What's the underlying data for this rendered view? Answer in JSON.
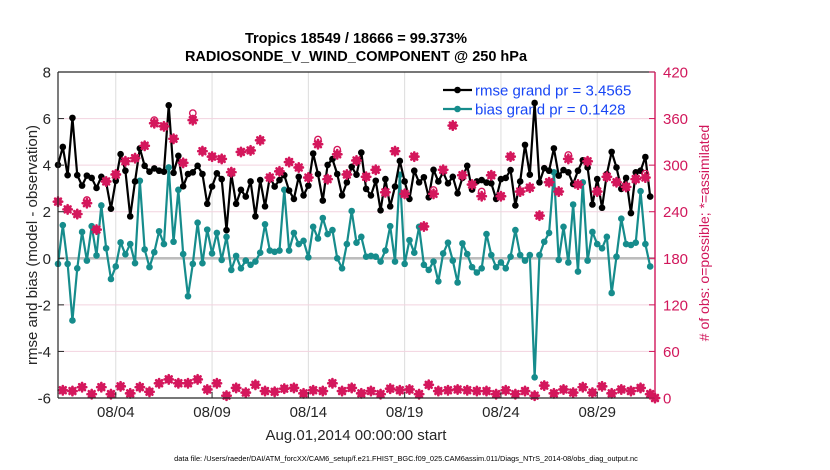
{
  "figure": {
    "footer": "data file: /Users/raeder/DAI/ATM_forcXX/CAM6_setup/f.e21.FHIST_BGC.f09_025.CAM6assim.011/Diags_NTrS_2014-08/obs_diag_output.nc"
  },
  "colors": {
    "rmse": "#000000",
    "bias": "#168c8c",
    "obs_count": "#d4175c",
    "right_axis": "#d1175b",
    "legend_text": "#1846f5",
    "zero_line": "#bdbdbd"
  },
  "chart_data": {
    "type": "line",
    "title": "Tropics 18549 / 18666 = 99.373%",
    "subtitle": "RADIOSONDE_V_WIND_COMPONENT @ 250 hPa",
    "xlabel": "Aug.01,2014 00:00:00 start",
    "ylabel": "rmse and bias (model - observation)",
    "y2label": "# of obs: o=possible; *=assimilated",
    "x_units": "days since Aug.01,2014 00:00:00",
    "xlim": [
      0,
      31
    ],
    "ylim": [
      -6,
      8
    ],
    "y2lim": [
      0,
      420
    ],
    "grid": true,
    "legend_position": "top-right",
    "reference_line": 0,
    "x_ticks": [
      {
        "day": 3,
        "label": "08/04"
      },
      {
        "day": 8,
        "label": "08/09"
      },
      {
        "day": 13,
        "label": "08/14"
      },
      {
        "day": 18,
        "label": "08/19"
      },
      {
        "day": 23,
        "label": "08/24"
      },
      {
        "day": 28,
        "label": "08/29"
      }
    ],
    "y_ticks": [
      8,
      6,
      4,
      2,
      0,
      -2,
      -4,
      -6
    ],
    "y2_ticks": [
      0,
      60,
      120,
      180,
      240,
      300,
      360,
      420
    ],
    "x_days": [
      0,
      0.25,
      0.5,
      0.75,
      1,
      1.25,
      1.5,
      1.75,
      2,
      2.25,
      2.5,
      2.75,
      3,
      3.25,
      3.5,
      3.75,
      4,
      4.25,
      4.5,
      4.75,
      5,
      5.25,
      5.5,
      5.75,
      6,
      6.25,
      6.5,
      6.75,
      7,
      7.25,
      7.5,
      7.75,
      8,
      8.25,
      8.5,
      8.75,
      9,
      9.25,
      9.5,
      9.75,
      10,
      10.25,
      10.5,
      10.75,
      11,
      11.25,
      11.5,
      11.75,
      12,
      12.25,
      12.5,
      12.75,
      13,
      13.25,
      13.5,
      13.75,
      14,
      14.25,
      14.5,
      14.75,
      15,
      15.25,
      15.5,
      15.75,
      16,
      16.25,
      16.5,
      16.75,
      17,
      17.25,
      17.5,
      17.75,
      18,
      18.25,
      18.5,
      18.75,
      19,
      19.25,
      19.5,
      19.75,
      20,
      20.25,
      20.5,
      20.75,
      21,
      21.25,
      21.5,
      21.75,
      22,
      22.25,
      22.5,
      22.75,
      23,
      23.25,
      23.5,
      23.75,
      24,
      24.25,
      24.5,
      24.75,
      25,
      25.25,
      25.5,
      25.75,
      26,
      26.25,
      26.5,
      26.75,
      27,
      27.25,
      27.5,
      27.75,
      28,
      28.25,
      28.5,
      28.75,
      29,
      29.25,
      29.5,
      29.75,
      30,
      30.25,
      30.5,
      30.75,
      31
    ],
    "series": [
      {
        "name": "rmse",
        "axis": "left",
        "legend": "rmse grand pr = 3.4565",
        "values": [
          4.01,
          4.78,
          3.57,
          6.03,
          3.57,
          3.12,
          3.55,
          3.45,
          3.02,
          3.5,
          3.26,
          2.13,
          3.33,
          4.47,
          3.76,
          1.8,
          3.3,
          4.72,
          3.97,
          3.72,
          3.86,
          3.76,
          3.72,
          6.57,
          3.67,
          4.4,
          3.09,
          3.62,
          3.69,
          3.97,
          3.62,
          2.34,
          3.08,
          3.65,
          3.4,
          1.21,
          3.62,
          2.34,
          2.94,
          2.65,
          3.3,
          1.8,
          3.36,
          2.23,
          3.5,
          3.08,
          3.36,
          3.57,
          2.91,
          2.55,
          3.5,
          2.7,
          3.12,
          4.5,
          3.62,
          2.48,
          4.01,
          4.26,
          3.62,
          2.7,
          3.26,
          3.93,
          3.59,
          4.54,
          2.98,
          2.7,
          3.33,
          2.06,
          3.4,
          2.23,
          3.08,
          4.18,
          3.3,
          2.55,
          3.76,
          3.26,
          3.48,
          2.62,
          3.8,
          3.3,
          3.69,
          3.22,
          3.5,
          2.79,
          3.45,
          3.97,
          2.95,
          3.3,
          3.36,
          3.25,
          3.22,
          2.55,
          3.4,
          3.45,
          3.79,
          2.27,
          3.3,
          4.87,
          3.59,
          6.67,
          3.26,
          3.87,
          3.76,
          4.72,
          3.55,
          3.79,
          3.69,
          3.19,
          3.76,
          4.21,
          3.9,
          2.31,
          3.4,
          2.17,
          3.62,
          4.57,
          3.9,
          2.98,
          3.45,
          1.94,
          3.69,
          3.76,
          4.35,
          2.65,
          null
        ]
      },
      {
        "name": "bias",
        "axis": "left",
        "legend": "bias grand pr = 0.1428",
        "values": [
          -0.24,
          1.42,
          -0.24,
          -2.67,
          -0.43,
          1.13,
          -0.1,
          1.38,
          0.12,
          2.27,
          0.43,
          -0.89,
          -0.35,
          0.68,
          0.17,
          0.61,
          -0.21,
          3.33,
          0.38,
          -0.38,
          0.26,
          1.16,
          0.61,
          3.9,
          0.71,
          2.94,
          0.18,
          -1.63,
          -0.24,
          1.53,
          -0.21,
          1.23,
          0.21,
          1.09,
          -0.07,
          0.92,
          -0.5,
          0.1,
          -0.43,
          -0.1,
          -0.28,
          -0.14,
          0.24,
          1.46,
          0.33,
          0.28,
          0.33,
          2.94,
          0.33,
          1.09,
          0.61,
          0.75,
          0.04,
          1.35,
          0.85,
          1.73,
          1.04,
          1.21,
          0.0,
          -0.43,
          0.61,
          2.03,
          0.67,
          0.92,
          0.07,
          0.1,
          0.07,
          -0.14,
          0.33,
          1.38,
          -0.14,
          3.59,
          -0.24,
          0.78,
          0.24,
          1.35,
          -0.28,
          -0.5,
          -0.14,
          -0.99,
          0.21,
          0.67,
          -0.1,
          -1.04,
          0.64,
          0.18,
          -0.38,
          -0.61,
          -0.43,
          1.04,
          0.14,
          -0.38,
          -0.18,
          -0.43,
          0.07,
          1.21,
          0.14,
          -0.1,
          0.14,
          -5.11,
          0.14,
          0.71,
          1.09,
          3.69,
          -0.07,
          1.35,
          -0.18,
          2.31,
          -0.57,
          3.26,
          -0.1,
          1.13,
          0.61,
          0.43,
          0.92,
          -1.49,
          0.07,
          1.7,
          0.61,
          0.57,
          0.67,
          2.88,
          0.61,
          -0.35,
          null
        ]
      }
    ],
    "obs_count": {
      "axis": "right",
      "possible": [
        253,
        10,
        243,
        9,
        237,
        14,
        255,
        5,
        217,
        14,
        279,
        5,
        288,
        15,
        305,
        6,
        309,
        14,
        325,
        8,
        358,
        19,
        350,
        24,
        334,
        19,
        303,
        19,
        367,
        24,
        318,
        11,
        311,
        19,
        308,
        3,
        291,
        13,
        317,
        7,
        319,
        17,
        332,
        9,
        284,
        8,
        292,
        12,
        304,
        13,
        297,
        6,
        284,
        10,
        333,
        9,
        282,
        19,
        320,
        9,
        288,
        13,
        306,
        6,
        285,
        9,
        294,
        5,
        265,
        12,
        318,
        10,
        263,
        11,
        311,
        5,
        221,
        17,
        268,
        9,
        294,
        10,
        351,
        11,
        287,
        10,
        275,
        9,
        266,
        9,
        287,
        5,
        260,
        10,
        311,
        5,
        266,
        9,
        271,
        3,
        235,
        16,
        278,
        6,
        266,
        11,
        313,
        7,
        275,
        14,
        305,
        7,
        266,
        15,
        285,
        6,
        278,
        11,
        272,
        9,
        282,
        13,
        289,
        5,
        0
      ],
      "assimilated": [
        253,
        10,
        243,
        9,
        237,
        14,
        251,
        5,
        217,
        14,
        279,
        5,
        288,
        15,
        305,
        6,
        309,
        14,
        325,
        8,
        354,
        19,
        350,
        24,
        334,
        19,
        303,
        19,
        358,
        24,
        318,
        11,
        311,
        19,
        308,
        3,
        291,
        13,
        317,
        7,
        319,
        17,
        332,
        9,
        284,
        8,
        292,
        12,
        304,
        13,
        297,
        6,
        284,
        10,
        327,
        9,
        282,
        19,
        314,
        9,
        288,
        13,
        306,
        6,
        285,
        9,
        294,
        5,
        265,
        12,
        318,
        10,
        263,
        11,
        311,
        5,
        221,
        17,
        263,
        9,
        294,
        10,
        351,
        11,
        287,
        10,
        275,
        9,
        260,
        9,
        287,
        5,
        260,
        10,
        311,
        5,
        266,
        9,
        271,
        3,
        235,
        16,
        278,
        6,
        266,
        11,
        308,
        7,
        275,
        14,
        305,
        7,
        266,
        15,
        285,
        6,
        278,
        11,
        272,
        9,
        282,
        13,
        284,
        5,
        0
      ]
    }
  }
}
